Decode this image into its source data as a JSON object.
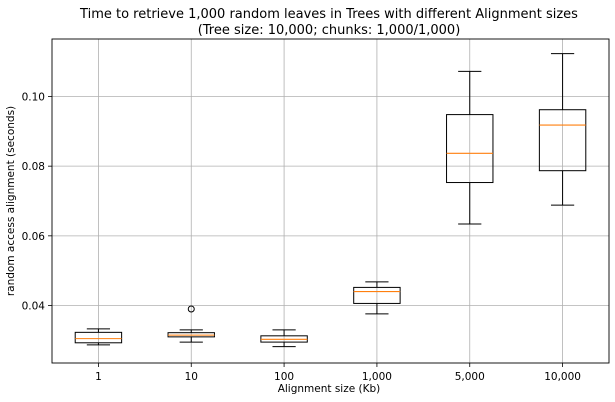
{
  "chart_data": {
    "type": "box",
    "title": "Time to retrieve 1,000 random leaves in Trees with different Alignment sizes",
    "subtitle": "(Tree size: 10,000; chunks: 1,000/1,000)",
    "xlabel": "Alignment size (Kb)",
    "ylabel": "random access alignment (seconds)",
    "categories": [
      "1",
      "10",
      "100",
      "1,000",
      "5,000",
      "10,000"
    ],
    "y_ticks": [
      0.04,
      0.06,
      0.08,
      0.1
    ],
    "y_tick_labels": [
      "0.04",
      "0.06",
      "0.08",
      "0.10"
    ],
    "ylim": [
      0.0235,
      0.1165
    ],
    "grid": true,
    "boxes": [
      {
        "category": "1",
        "whisker_low": 0.0287,
        "q1": 0.0293,
        "median": 0.0305,
        "q3": 0.0323,
        "whisker_high": 0.0333,
        "outliers": []
      },
      {
        "category": "10",
        "whisker_low": 0.0295,
        "q1": 0.031,
        "median": 0.0315,
        "q3": 0.0322,
        "whisker_high": 0.033,
        "outliers": [
          0.039
        ]
      },
      {
        "category": "100",
        "whisker_low": 0.0282,
        "q1": 0.0295,
        "median": 0.0303,
        "q3": 0.0313,
        "whisker_high": 0.033,
        "outliers": []
      },
      {
        "category": "1,000",
        "whisker_low": 0.0376,
        "q1": 0.0406,
        "median": 0.044,
        "q3": 0.0452,
        "whisker_high": 0.0468,
        "outliers": []
      },
      {
        "category": "5,000",
        "whisker_low": 0.0634,
        "q1": 0.0753,
        "median": 0.0837,
        "q3": 0.0948,
        "whisker_high": 0.1072,
        "outliers": []
      },
      {
        "category": "10,000",
        "whisker_low": 0.0688,
        "q1": 0.0787,
        "median": 0.0918,
        "q3": 0.0962,
        "whisker_high": 0.1123,
        "outliers": []
      }
    ],
    "colors": {
      "box": "#000000",
      "median": "#ff7f0e",
      "grid": "#b0b0b0"
    }
  }
}
